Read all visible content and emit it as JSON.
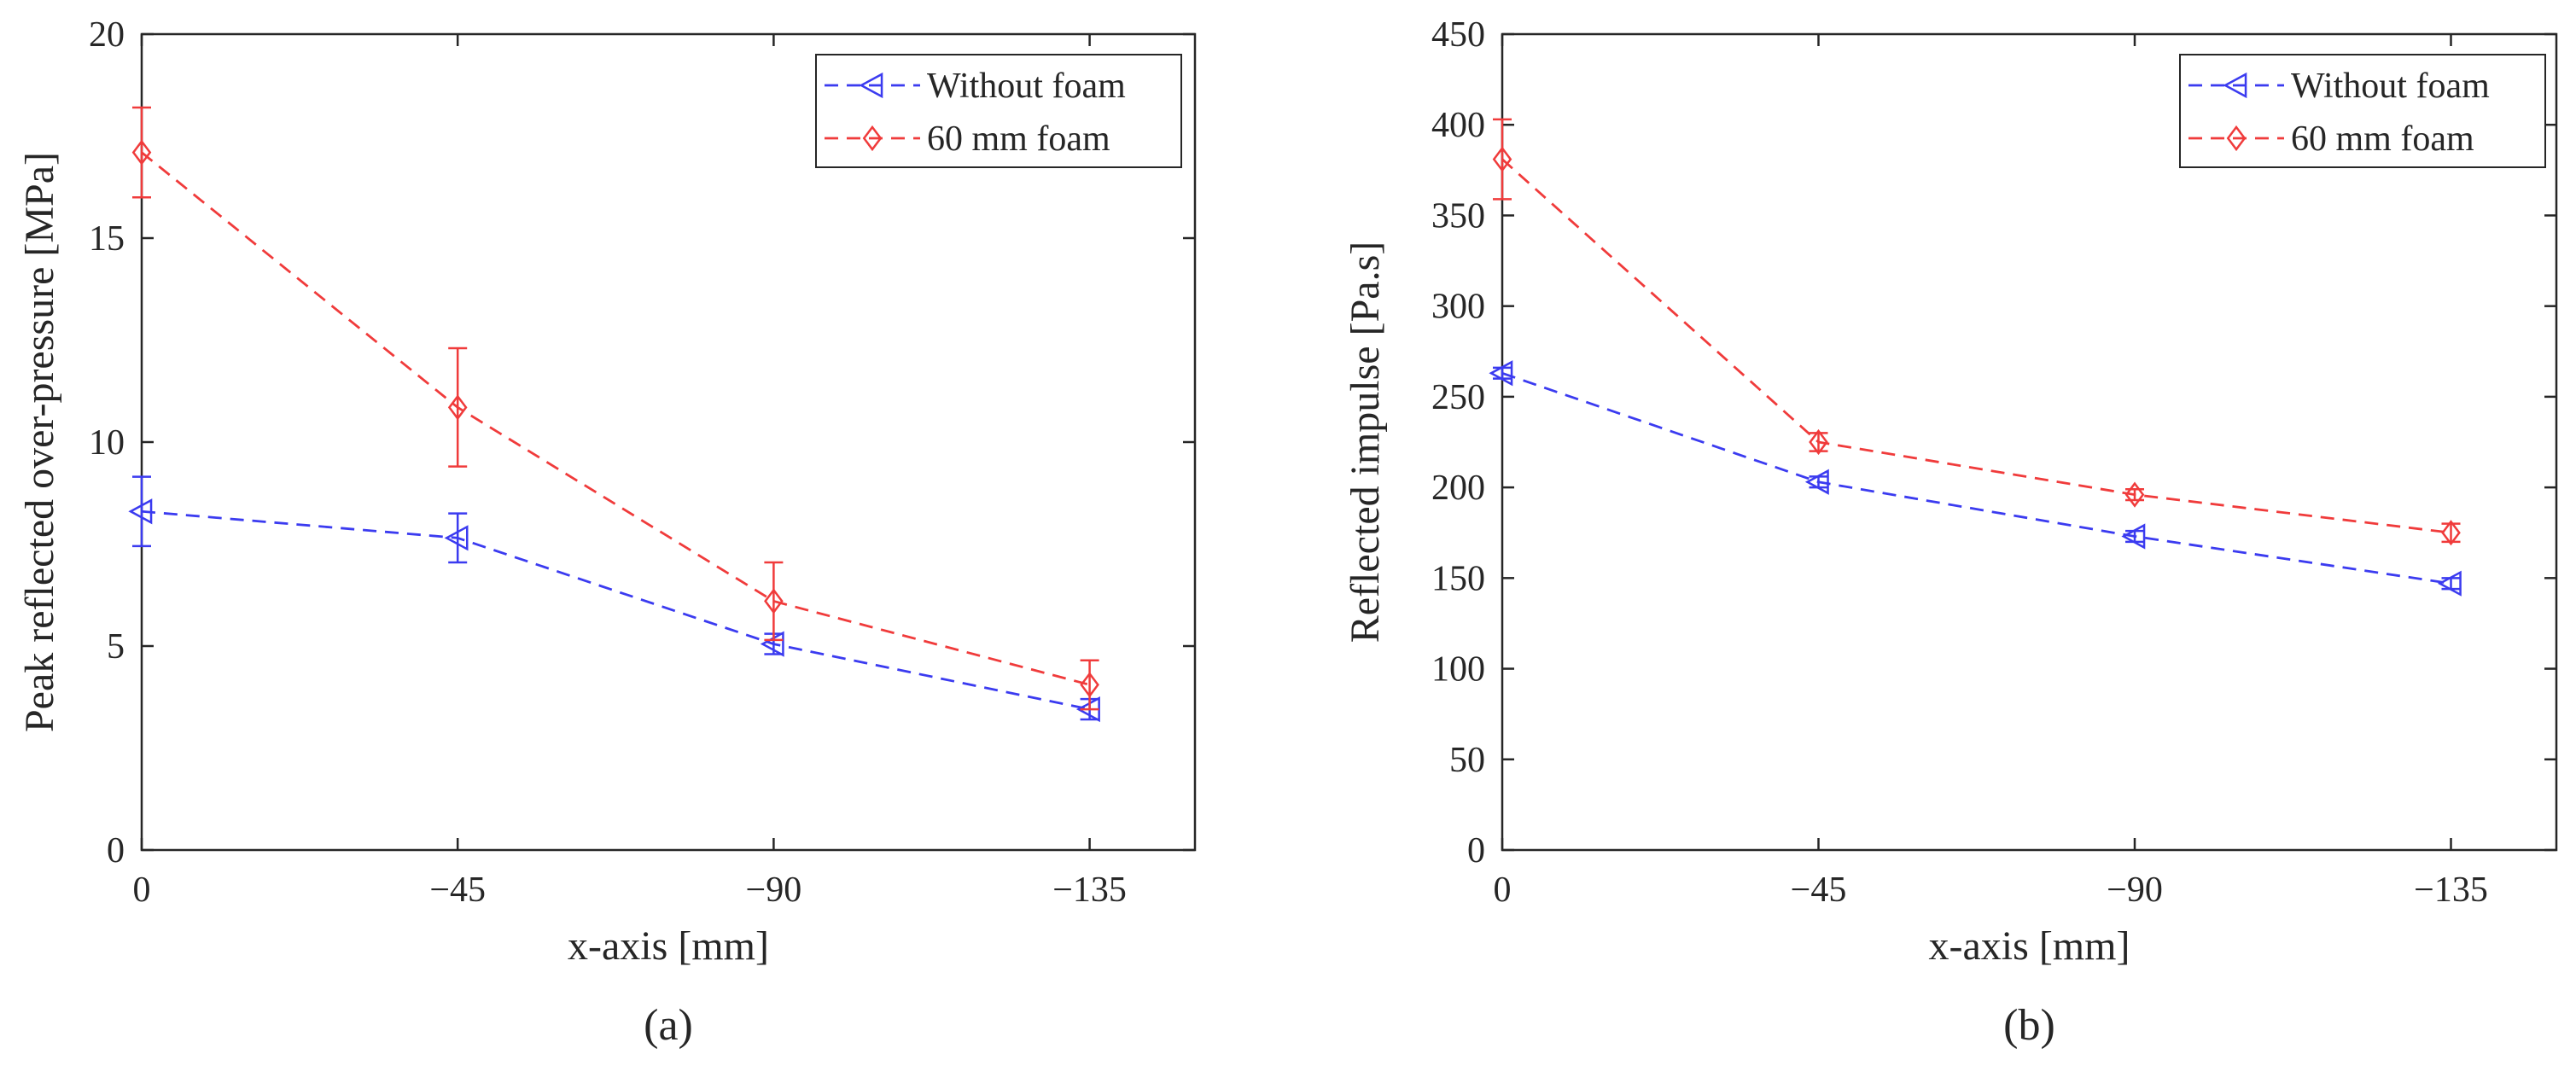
{
  "chart_data": [
    {
      "type": "line",
      "caption": "(a)",
      "xlabel": "x-axis [mm]",
      "ylabel": "Peak reflected over-pressure [MPa]",
      "categories": [
        "0",
        "−45",
        "−90",
        "−135"
      ],
      "x": [
        0,
        -45,
        -90,
        -135
      ],
      "xlim": [
        0,
        -150
      ],
      "ylim": [
        0,
        20
      ],
      "yticks": [
        0,
        5,
        10,
        15,
        20
      ],
      "legend_position": "top-right",
      "series": [
        {
          "name": "Without foam",
          "color": "#3b3bf0",
          "marker": "triangle-left",
          "values": [
            8.3,
            7.65,
            5.05,
            3.45
          ],
          "errors": [
            0.85,
            0.6,
            0.25,
            0.25
          ]
        },
        {
          "name": "60 mm foam",
          "color": "#f03b3b",
          "marker": "diamond",
          "values": [
            17.1,
            10.85,
            6.1,
            4.05
          ],
          "errors": [
            1.1,
            1.45,
            0.95,
            0.6
          ]
        }
      ]
    },
    {
      "type": "line",
      "caption": "(b)",
      "xlabel": "x-axis [mm]",
      "ylabel": "Reflected impulse [Pa.s]",
      "categories": [
        "0",
        "−45",
        "−90",
        "−135"
      ],
      "x": [
        0,
        -45,
        -90,
        -135
      ],
      "xlim": [
        0,
        -150
      ],
      "ylim": [
        0,
        450
      ],
      "yticks": [
        0,
        50,
        100,
        150,
        200,
        250,
        300,
        350,
        400,
        450
      ],
      "legend_position": "top-right",
      "series": [
        {
          "name": "Without foam",
          "color": "#3b3bf0",
          "marker": "triangle-left",
          "values": [
            263,
            203,
            173,
            147
          ],
          "errors": [
            3,
            3,
            3,
            3
          ]
        },
        {
          "name": "60 mm foam",
          "color": "#f03b3b",
          "marker": "diamond",
          "values": [
            381,
            225,
            196,
            175
          ],
          "errors": [
            22,
            5,
            3,
            5
          ]
        }
      ]
    }
  ]
}
